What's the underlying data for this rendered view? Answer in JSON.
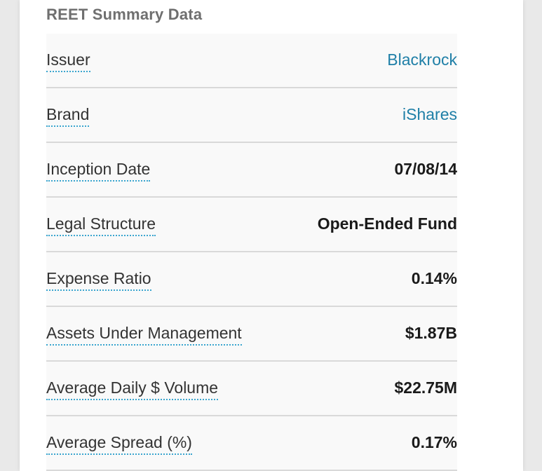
{
  "section": {
    "title": "REET Summary Data"
  },
  "rows": [
    {
      "label": "Issuer",
      "value": "Blackrock"
    },
    {
      "label": "Brand",
      "value": "iShares"
    },
    {
      "label": "Inception Date",
      "value": "07/08/14"
    },
    {
      "label": "Legal Structure",
      "value": "Open-Ended Fund"
    },
    {
      "label": "Expense Ratio",
      "value": "0.14%"
    },
    {
      "label": "Assets Under Management",
      "value": "$1.87B"
    },
    {
      "label": "Average Daily $ Volume",
      "value": "$22.75M"
    },
    {
      "label": "Average Spread (%)",
      "value": "0.17%"
    }
  ],
  "colors": {
    "link": "#1f7fa7",
    "dotted_underline": "#3aa5cf",
    "divider": "#d9d9d9",
    "title": "#6f6f6f"
  }
}
